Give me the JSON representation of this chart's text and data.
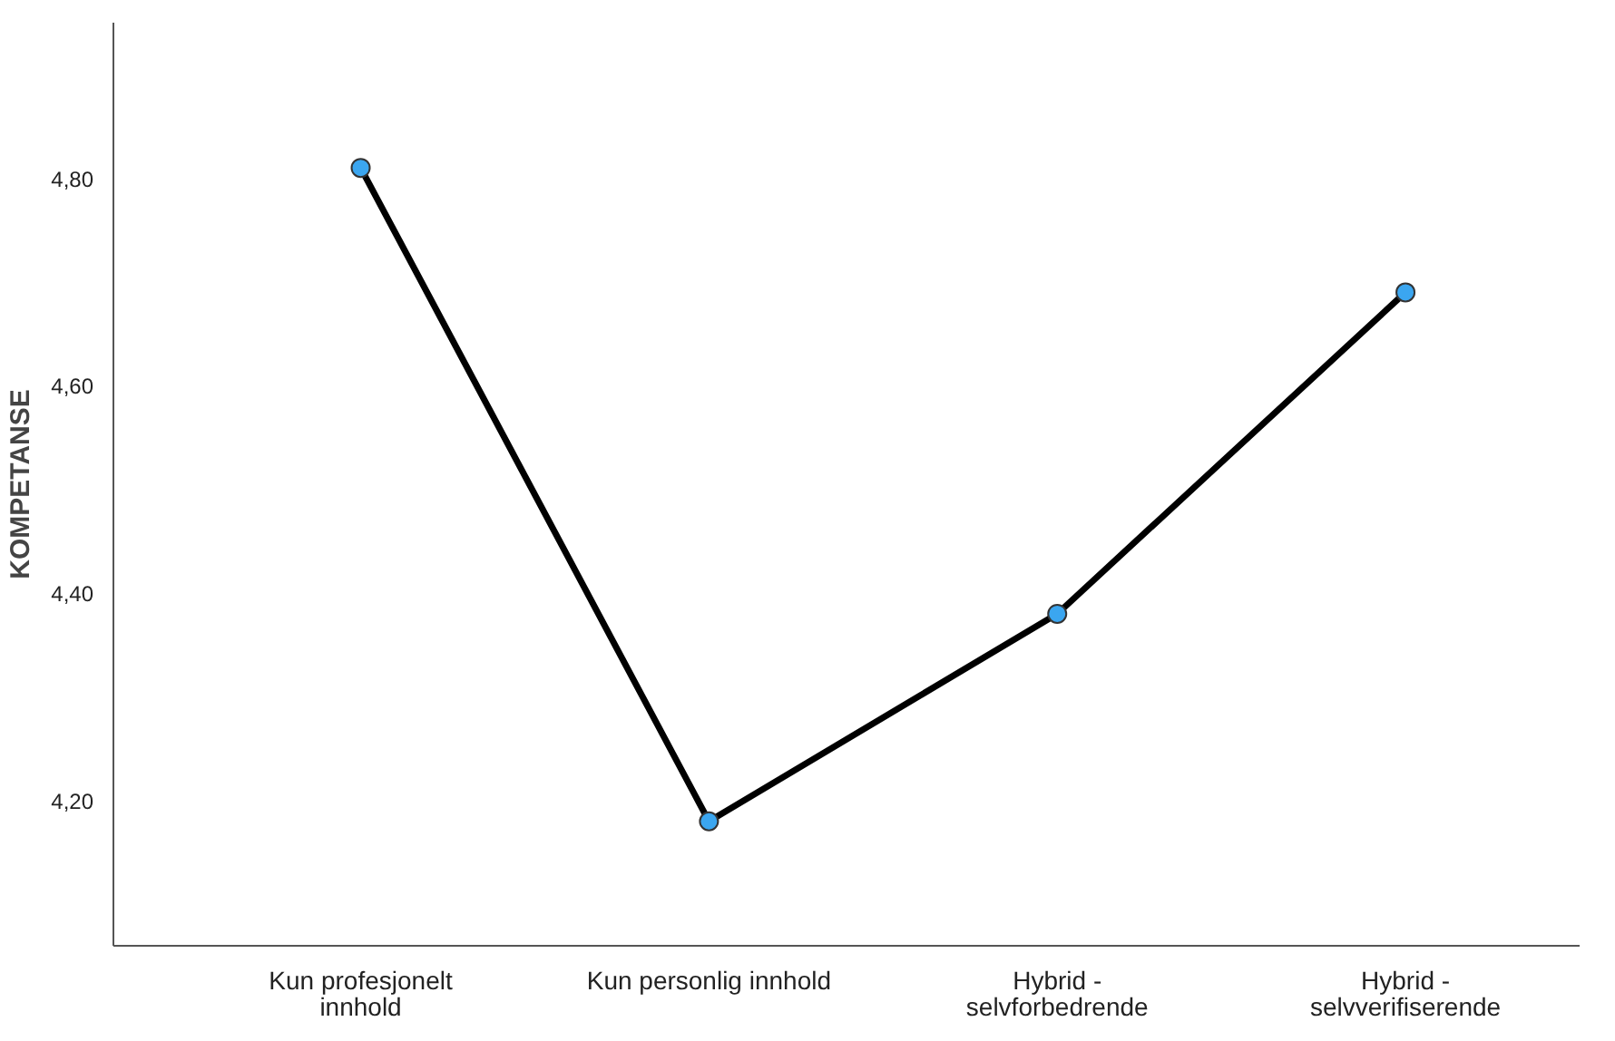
{
  "chart_data": {
    "type": "line",
    "ylabel": "KOMPETANSE",
    "categories": [
      "Kun profesjonelt innhold",
      "Kun personlig innhold",
      "Hybrid - selvforbedrende",
      "Hybrid - selvverifiserende"
    ],
    "series": [
      {
        "color": "#000000",
        "values": [
          4.81,
          4.18,
          4.38,
          4.69
        ]
      }
    ],
    "marker": "circle",
    "ylim": [
      4.06,
      4.95
    ],
    "yticks": [
      {
        "value": 4.2,
        "label": "4,20"
      },
      {
        "value": 4.4,
        "label": "4,40"
      },
      {
        "value": 4.6,
        "label": "4,60"
      },
      {
        "value": 4.8,
        "label": "4,80"
      }
    ],
    "line_style": "solid"
  }
}
